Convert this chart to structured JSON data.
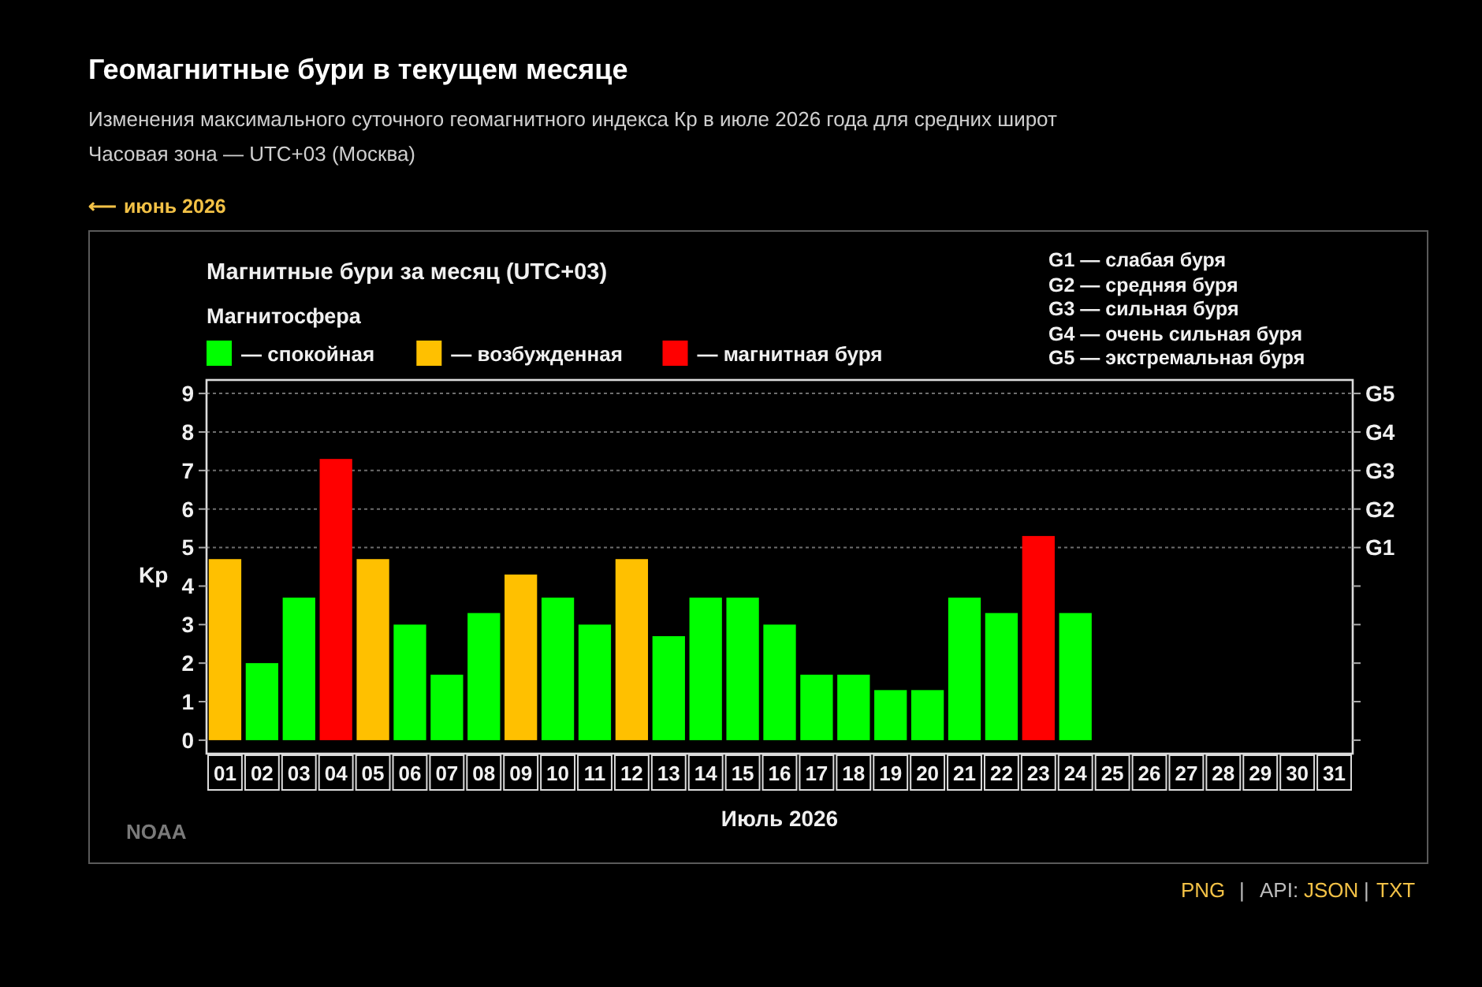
{
  "chart_data": {
    "type": "bar",
    "title": "Геомагнитные бури в текущем месяце",
    "subtitle": "Изменения максимального суточного геомагнитного индекса Кр в июле 2026 года для средних широт",
    "xlabel": "Июль 2026",
    "ylabel": "Kp",
    "legend_title": "Магнитосфера",
    "legend": "top left",
    "stacked": true,
    "annotations": [
      "Часовая зона — UTC+03 (Москва)",
      "⟵ июнь 2026",
      "Магнитные бури за месяц (UTC+03)",
      "G1 — слабая буря",
      "G2 — средняя буря",
      "G3 — сильная буря",
      "G4 — очень сильная буря",
      "G5 — экстремальная буря",
      "NOAA",
      "PNG",
      "|",
      "API:",
      "JSON",
      "|",
      "TXT"
    ],
    "categories": [
      "01",
      "02",
      "03",
      "04",
      "05",
      "06",
      "07",
      "08",
      "09",
      "10",
      "11",
      "12",
      "13",
      "14",
      "15",
      "16",
      "17",
      "18",
      "19",
      "20",
      "21",
      "22",
      "23",
      "24",
      "25",
      "26",
      "27",
      "28",
      "29",
      "30",
      "31"
    ],
    "series": [
      {
        "name": "— спокойная",
        "color": "#00ff00",
        "values": [
          null,
          2,
          3.7,
          null,
          null,
          3,
          1.7,
          3.3,
          null,
          3.7,
          3,
          null,
          2.7,
          3.7,
          3.7,
          3,
          1.7,
          1.7,
          1.3,
          1.3,
          3.7,
          3.3,
          null,
          3.3,
          null,
          null,
          null,
          null,
          null,
          null,
          null
        ]
      },
      {
        "name": "— возбужденная",
        "color": "#ffc000",
        "values": [
          4.7,
          null,
          null,
          null,
          4.7,
          null,
          null,
          null,
          4.3,
          null,
          null,
          4.7,
          null,
          null,
          null,
          null,
          null,
          null,
          null,
          null,
          null,
          null,
          null,
          null,
          null,
          null,
          null,
          null,
          null,
          null,
          null
        ]
      },
      {
        "name": "— магнитная буря",
        "color": "#ff0000",
        "values": [
          null,
          null,
          null,
          7.3,
          null,
          null,
          null,
          null,
          null,
          null,
          null,
          null,
          null,
          null,
          null,
          null,
          null,
          null,
          null,
          null,
          null,
          null,
          5.3,
          null,
          null,
          null,
          null,
          null,
          null,
          null,
          null
        ]
      }
    ],
    "ylim": [
      -0.35,
      9.35
    ],
    "yticks": [
      0,
      1,
      2,
      3,
      4,
      5,
      6,
      7,
      8,
      9
    ],
    "ref_lines": [
      {
        "axis": "y",
        "value": 5,
        "label": "G1",
        "color": "#6e6e6e",
        "line_style": "dotted"
      },
      {
        "axis": "y",
        "value": 6,
        "label": "G2",
        "color": "#6e6e6e",
        "line_style": "dotted"
      },
      {
        "axis": "y",
        "value": 7,
        "label": "G3",
        "color": "#6e6e6e",
        "line_style": "dotted"
      },
      {
        "axis": "y",
        "value": 8,
        "label": "G4",
        "color": "#6e6e6e",
        "line_style": "dotted"
      },
      {
        "axis": "y",
        "value": 9,
        "label": "G5",
        "color": "#6e6e6e",
        "line_style": "dotted"
      }
    ]
  }
}
